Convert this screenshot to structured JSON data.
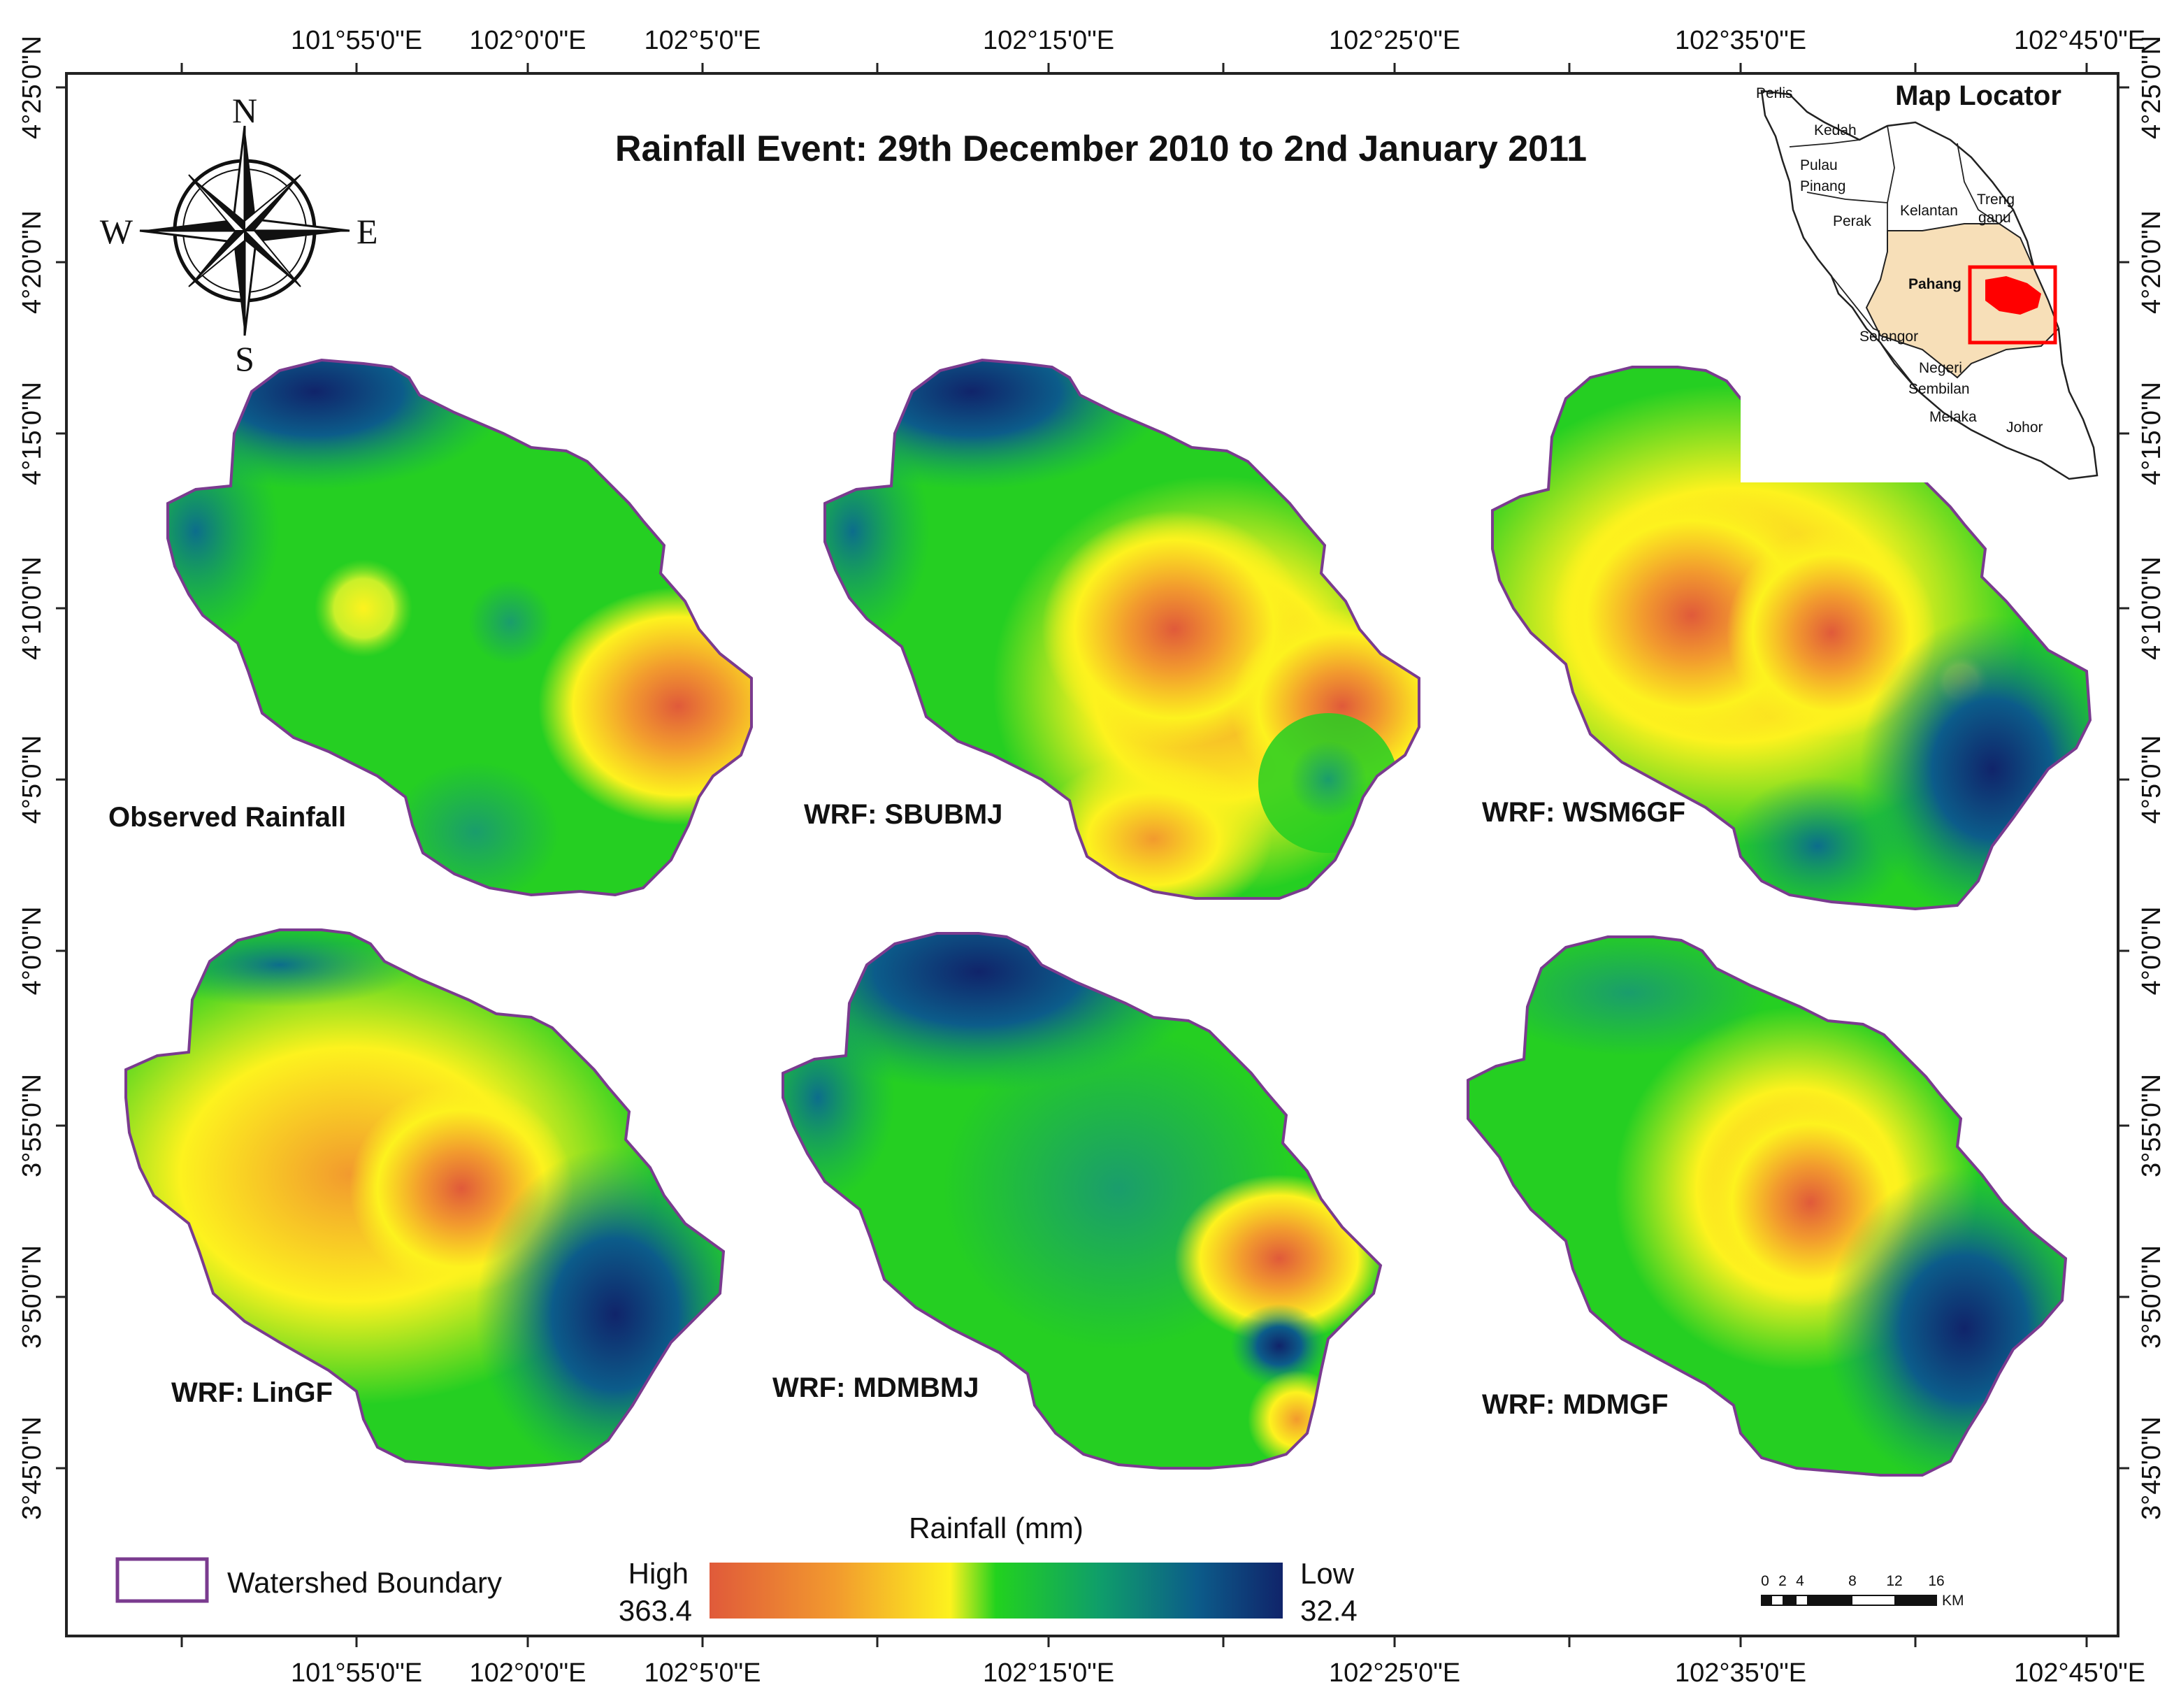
{
  "title": "Rainfall Event: 29th December 2010 to 2nd January 2011",
  "longitude_labels": [
    "101°55'0\"E",
    "102°0'0\"E",
    "102°5'0\"E",
    "102°15'0\"E",
    "102°25'0\"E",
    "102°35'0\"E",
    "102°45'0\"E"
  ],
  "latitude_labels": [
    "4°25'0\"N",
    "4°20'0\"N",
    "4°15'0\"N",
    "4°10'0\"N",
    "4°5'0\"N",
    "4°0'0\"N",
    "3°55'0\"N",
    "3°50'0\"N",
    "3°45'0\"N"
  ],
  "compass": {
    "n": "N",
    "s": "S",
    "e": "E",
    "w": "W"
  },
  "panels": [
    {
      "label": "Observed Rainfall"
    },
    {
      "label": "WRF: SBUBMJ"
    },
    {
      "label": "WRF: WSM6GF"
    },
    {
      "label": "WRF: LinGF"
    },
    {
      "label": "WRF: MDMBMJ"
    },
    {
      "label": "WRF: MDMGF"
    }
  ],
  "map_locator": {
    "title": "Map Locator",
    "states": [
      "Perlis",
      "Kedah",
      "Pulau",
      "Pinang",
      "Perak",
      "Kelantan",
      "Treng",
      "ganu",
      "Pahang",
      "Selangor",
      "Negeri",
      "Sembilan",
      "Melaka",
      "Johor"
    ]
  },
  "legend": {
    "boundary_label": "Watershed Boundary",
    "colorbar_title": "Rainfall (mm)",
    "high_label": "High",
    "high_value": "363.4",
    "low_label": "Low",
    "low_value": "32.4"
  },
  "scale_bar": {
    "ticks": [
      "0",
      "2",
      "4",
      "8",
      "12",
      "16"
    ],
    "unit": "KM"
  },
  "colors": {
    "ramp": [
      "#e05a3a",
      "#f29a2e",
      "#fdf21e",
      "#22d21e",
      "#0f9e6a",
      "#0c5c8a",
      "#10246a"
    ],
    "boundary": "#7a3b8f",
    "locator_pahang": "#f7dfb8",
    "locator_highlight": "#ff0000"
  }
}
